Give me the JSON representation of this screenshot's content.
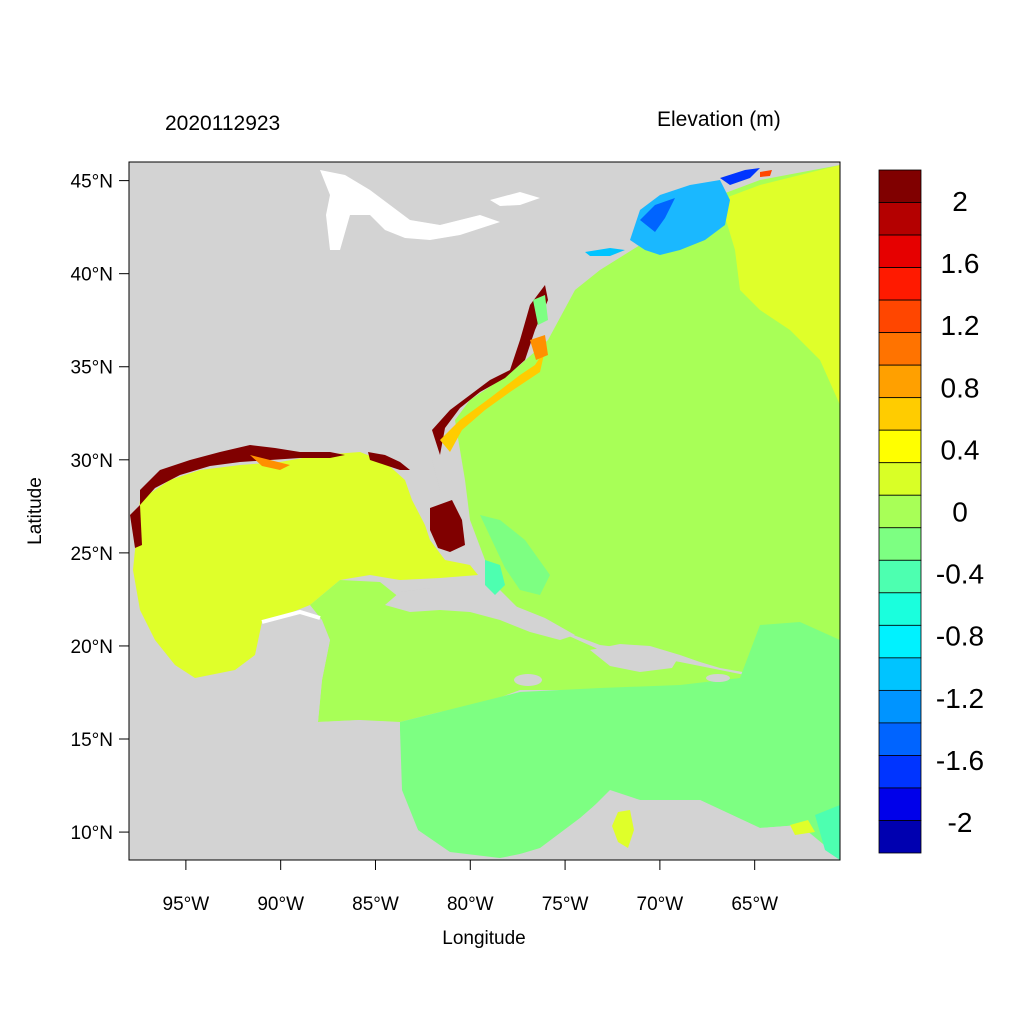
{
  "header": {
    "timestamp": "2020112923",
    "variable_label": "Elevation (m)"
  },
  "axes": {
    "xlabel": "Longitude",
    "ylabel": "Latitude",
    "lon_range": [
      -98,
      -60.5
    ],
    "lat_range": [
      8.5,
      46
    ],
    "lon_ticks": [
      {
        "value": -95,
        "label": "95°W"
      },
      {
        "value": -90,
        "label": "90°W"
      },
      {
        "value": -85,
        "label": "85°W"
      },
      {
        "value": -80,
        "label": "80°W"
      },
      {
        "value": -75,
        "label": "75°W"
      },
      {
        "value": -70,
        "label": "70°W"
      },
      {
        "value": -65,
        "label": "65°W"
      }
    ],
    "lat_ticks": [
      {
        "value": 45,
        "label": "45°N"
      },
      {
        "value": 40,
        "label": "40°N"
      },
      {
        "value": 35,
        "label": "35°N"
      },
      {
        "value": 30,
        "label": "30°N"
      },
      {
        "value": 25,
        "label": "25°N"
      },
      {
        "value": 20,
        "label": "20°N"
      },
      {
        "value": 15,
        "label": "15°N"
      },
      {
        "value": 10,
        "label": "10°N"
      }
    ]
  },
  "colorbar": {
    "levels": [
      {
        "color": "#800000"
      },
      {
        "color": "#b40000"
      },
      {
        "color": "#e60000"
      },
      {
        "color": "#ff1a00"
      },
      {
        "color": "#ff4600"
      },
      {
        "color": "#ff7300"
      },
      {
        "color": "#ffa000"
      },
      {
        "color": "#ffcc00"
      },
      {
        "color": "#ffff00"
      },
      {
        "color": "#d9ff26"
      },
      {
        "color": "#a8ff57"
      },
      {
        "color": "#7dff82"
      },
      {
        "color": "#4dffb0"
      },
      {
        "color": "#1affdd"
      },
      {
        "color": "#00f2ff"
      },
      {
        "color": "#00c4ff"
      },
      {
        "color": "#0094ff"
      },
      {
        "color": "#0064ff"
      },
      {
        "color": "#0034ff"
      },
      {
        "color": "#0000ea"
      },
      {
        "color": "#0000b0"
      }
    ],
    "tick_labels": [
      {
        "label": "2",
        "value": 2.0
      },
      {
        "label": "1.6",
        "value": 1.6
      },
      {
        "label": "1.2",
        "value": 1.2
      },
      {
        "label": "0.8",
        "value": 0.8
      },
      {
        "label": "0.4",
        "value": 0.4
      },
      {
        "label": "0",
        "value": 0.0
      },
      {
        "label": "-0.4",
        "value": -0.4
      },
      {
        "label": "-0.8",
        "value": -0.8
      },
      {
        "label": "-1.2",
        "value": -1.2
      },
      {
        "label": "-1.6",
        "value": -1.6
      },
      {
        "label": "-2",
        "value": -2.0
      }
    ],
    "max": 2.2,
    "min": -2.2
  },
  "colors": {
    "land": "#d3d3d3",
    "gulf": "#dfff2a",
    "atlantic": "#a8ff57",
    "caribbean": "#7dff82",
    "surge_high": "#800000",
    "surge_mid": "#ff9000",
    "gulf_of_maine_low": "#1ab8ff",
    "bay_of_fundy_high": "#ffff00"
  }
}
